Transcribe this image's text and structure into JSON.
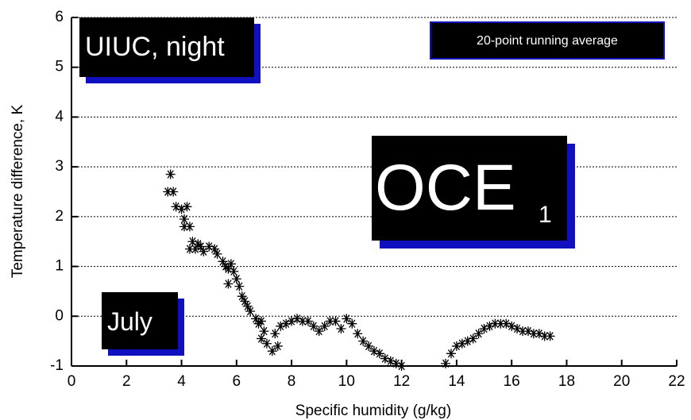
{
  "chart_data": {
    "type": "scatter",
    "x_label": "Specific humidity (g/kg)",
    "y_label": "Temperature difference, K",
    "annotations": {
      "site": "UIUC, night",
      "month": "July",
      "method": "20-point running average",
      "label": "OCE",
      "label_subscript": "1"
    },
    "xlim": [
      0,
      22
    ],
    "xticks": [
      0,
      2,
      4,
      6,
      8,
      10,
      12,
      14,
      16,
      18,
      20,
      22
    ],
    "ylim": [
      -1,
      6
    ],
    "yticks": [
      -1,
      0,
      1,
      2,
      3,
      4,
      5,
      6
    ],
    "grid": true,
    "color": "#000000",
    "x": [
      3.6,
      3.5,
      3.7,
      3.8,
      4.0,
      4.2,
      4.1,
      4.1,
      4.3,
      4.4,
      4.3,
      4.5,
      4.6,
      4.7,
      4.8,
      5.0,
      5.2,
      5.3,
      5.5,
      5.6,
      5.7,
      5.8,
      5.9,
      5.7,
      6.0,
      6.1,
      6.2,
      6.3,
      6.4,
      6.5,
      6.7,
      6.8,
      6.9,
      7.0,
      6.9,
      7.1,
      7.3,
      7.5,
      7.4,
      7.6,
      7.8,
      8.0,
      8.2,
      8.4,
      8.6,
      8.8,
      9.0,
      9.2,
      9.4,
      9.6,
      9.8,
      10.0,
      10.2,
      10.4,
      10.6,
      10.8,
      11.0,
      11.2,
      11.4,
      11.6,
      11.8,
      12.0,
      13.6,
      13.8,
      14.0,
      14.2,
      14.4,
      14.6,
      14.8,
      15.0,
      15.2,
      15.4,
      15.6,
      15.8,
      16.0,
      16.2,
      16.4,
      16.6,
      16.8,
      17.0,
      17.2,
      17.4
    ],
    "values": [
      2.85,
      2.5,
      2.5,
      2.2,
      2.15,
      2.2,
      1.95,
      1.8,
      1.8,
      1.5,
      1.35,
      1.35,
      1.45,
      1.4,
      1.3,
      1.4,
      1.35,
      1.25,
      1.1,
      1.0,
      0.95,
      1.05,
      0.9,
      0.65,
      0.75,
      0.6,
      0.4,
      0.3,
      0.2,
      0.1,
      -0.05,
      -0.15,
      -0.1,
      -0.3,
      -0.45,
      -0.55,
      -0.7,
      -0.6,
      -0.35,
      -0.2,
      -0.15,
      -0.1,
      -0.05,
      -0.1,
      -0.1,
      -0.2,
      -0.3,
      -0.2,
      -0.1,
      -0.1,
      -0.25,
      -0.05,
      -0.15,
      -0.35,
      -0.5,
      -0.6,
      -0.7,
      -0.75,
      -0.85,
      -0.9,
      -0.95,
      -1.0,
      -0.95,
      -0.75,
      -0.6,
      -0.55,
      -0.5,
      -0.45,
      -0.35,
      -0.25,
      -0.2,
      -0.15,
      -0.15,
      -0.15,
      -0.2,
      -0.25,
      -0.3,
      -0.3,
      -0.35,
      -0.35,
      -0.4,
      -0.4
    ]
  }
}
